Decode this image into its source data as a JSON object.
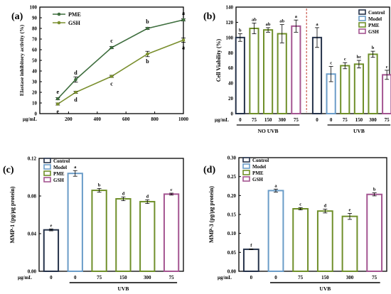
{
  "colors": {
    "pme": "#3e6e3e",
    "gsh": "#7a8f2e",
    "control": "#25324a",
    "model": "#6a9cc8",
    "pme_bar": "#6f8f2a",
    "gsh_bar": "#a45591",
    "dash": "#c0392b"
  },
  "chart_data": [
    {
      "panel": "(a)",
      "type": "line",
      "ylabel": "Elastase inhibitory activity (%)",
      "xunit": "μg/mL",
      "xlim": [
        0,
        1000
      ],
      "ylim": [
        0,
        100
      ],
      "xticks": [
        0,
        200,
        400,
        600,
        800,
        1000
      ],
      "yticks": [
        0,
        10,
        20,
        30,
        40,
        50,
        60,
        70,
        80,
        90,
        100
      ],
      "x": [
        125,
        250,
        500,
        750,
        1000
      ],
      "series": [
        {
          "name": "PME",
          "values": [
            14,
            32,
            62,
            80,
            88
          ],
          "errors": [
            1,
            2.5,
            1,
            1,
            1
          ],
          "letters": [
            "e",
            "d",
            "c",
            "b",
            "a"
          ]
        },
        {
          "name": "GSH",
          "values": [
            9,
            20,
            35,
            56,
            69
          ],
          "errors": [
            1,
            1,
            1,
            2.5,
            2
          ],
          "letters": [
            "e",
            "d",
            "c",
            "b",
            "a"
          ]
        }
      ]
    },
    {
      "panel": "(b)",
      "type": "bar",
      "ylabel": "Cell Viability (%)",
      "xunit": "μg/mL",
      "ylim": [
        0,
        140
      ],
      "yticks": [
        0,
        20,
        40,
        60,
        80,
        100,
        120,
        140
      ],
      "categories": [
        "0",
        "75",
        "150",
        "300",
        "75",
        "0",
        "0",
        "75",
        "150",
        "300",
        "75"
      ],
      "groups": [
        "Control",
        "PME",
        "PME",
        "PME",
        "GSH",
        "Control",
        "Model",
        "PME",
        "PME",
        "PME",
        "GSH"
      ],
      "values": [
        100,
        112,
        110,
        105,
        115,
        100,
        52,
        63,
        65,
        78,
        51
      ],
      "errors": [
        5,
        7,
        3,
        12,
        8,
        13,
        10,
        4,
        5,
        4,
        6
      ],
      "letters": [
        "b",
        "ab",
        "ab",
        "ab",
        "a",
        "a",
        "c",
        "c",
        "bc",
        "b",
        "c"
      ],
      "condition_labels": [
        "NO UVB",
        "UVB"
      ],
      "legend": [
        "Control",
        "Model",
        "PME",
        "GSH"
      ]
    },
    {
      "panel": "(c)",
      "type": "bar",
      "ylabel": "MMP-1 (pg/μg protein)",
      "xunit": "μg/mL",
      "ylim": [
        0,
        0.12
      ],
      "yticks": [
        "0.00",
        "0.04",
        "0.08",
        "0.12"
      ],
      "categories": [
        "0",
        "0",
        "75",
        "150",
        "300",
        "75"
      ],
      "groups": [
        "Control",
        "Model",
        "PME",
        "PME",
        "PME",
        "GSH"
      ],
      "values": [
        0.044,
        0.104,
        0.086,
        0.077,
        0.074,
        0.082
      ],
      "errors": [
        0.001,
        0.003,
        0.002,
        0.002,
        0.002,
        0.001
      ],
      "letters": [
        "e",
        "a",
        "b",
        "d",
        "d",
        "c"
      ],
      "condition_label": "UVB",
      "legend": [
        "Control",
        "Model",
        "PME",
        "GSH"
      ]
    },
    {
      "panel": "(d)",
      "type": "bar",
      "ylabel": "MMP-3 (pg/μg protein)",
      "xunit": "μg/mL",
      "ylim": [
        0,
        0.3
      ],
      "yticks": [
        "0.00",
        "0.05",
        "0.10",
        "0.15",
        "0.20",
        "0.25",
        "0.30"
      ],
      "categories": [
        "0",
        "0",
        "75",
        "150",
        "300",
        "75"
      ],
      "groups": [
        "Control",
        "Model",
        "PME",
        "PME",
        "PME",
        "GSH"
      ],
      "values": [
        0.058,
        0.213,
        0.165,
        0.159,
        0.145,
        0.203
      ],
      "errors": [
        0.001,
        0.004,
        0.003,
        0.005,
        0.008,
        0.004
      ],
      "letters": [
        "f",
        "a",
        "c",
        "d",
        "e",
        "b"
      ],
      "condition_label": "UVB",
      "legend": [
        "Control",
        "Model",
        "PME",
        "GSH"
      ]
    }
  ]
}
